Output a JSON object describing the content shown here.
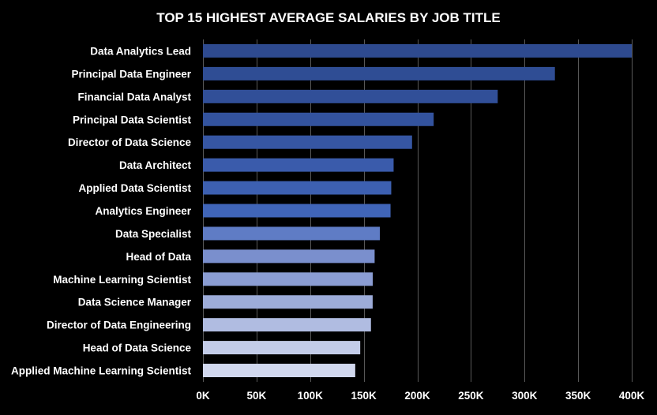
{
  "chart_data": {
    "type": "bar",
    "orientation": "horizontal",
    "title": "TOP 15 HIGHEST AVERAGE SALARIES BY JOB TITLE",
    "xlabel": "",
    "ylabel": "",
    "categories": [
      "Data Analytics Lead",
      "Principal Data Engineer",
      "Financial Data Analyst",
      "Principal Data Scientist",
      "Director of Data Science",
      "Data Architect",
      "Applied Data Scientist",
      "Analytics Engineer",
      "Data Specialist",
      "Head of Data",
      "Machine Learning Scientist",
      "Data Science Manager",
      "Director of Data Engineering",
      "Head of Data Science",
      "Applied Machine Learning Scientist"
    ],
    "values": [
      405000,
      328333,
      275000,
      215242,
      195074,
      177874,
      175655,
      175000,
      165000,
      160163,
      158413,
      158329,
      156739,
      146719,
      142069
    ],
    "xlim": [
      0,
      400000
    ],
    "x_ticks": [
      0,
      50000,
      100000,
      150000,
      200000,
      250000,
      300000,
      350000,
      400000
    ],
    "x_tick_labels": [
      "0K",
      "50K",
      "100K",
      "150K",
      "200K",
      "250K",
      "300K",
      "350K",
      "400K"
    ],
    "grid": true,
    "legend": "none",
    "colors": {
      "background": "#000000",
      "text": "#ffffff",
      "gridline": "#595959",
      "bars": [
        "#2e4a8f",
        "#2f4d94",
        "#314f98",
        "#33539e",
        "#3656a3",
        "#3a5bab",
        "#3d60b1",
        "#4065b8",
        "#5f7cc5",
        "#7a8fcd",
        "#8b9dd3",
        "#9dacd9",
        "#b0bce1",
        "#c3cce8",
        "#d1d8ee"
      ]
    }
  }
}
